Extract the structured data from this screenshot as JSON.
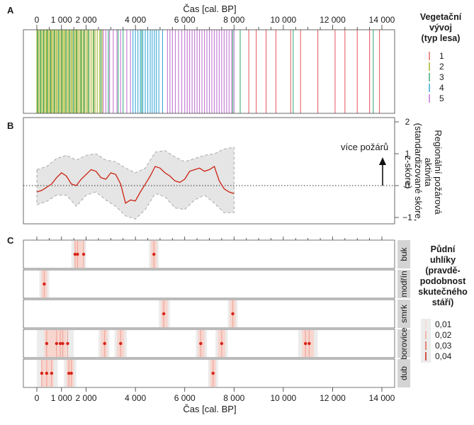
{
  "chart_data": [
    {
      "panel": "A",
      "type": "event-strip",
      "xlabel": "Čas [cal. BP]",
      "xlim": [
        -500,
        14500
      ],
      "xticks": [
        0,
        1000,
        2000,
        4000,
        6000,
        8000,
        10000,
        12000,
        14000
      ],
      "xtick_labels": [
        "0",
        "1 000",
        "2 000",
        "4 000",
        "6 000",
        "8 000",
        "10 000",
        "12 000",
        "14 000"
      ],
      "minor_xticks": [
        500,
        1500,
        2500,
        3000,
        3500,
        4500,
        5000,
        5500,
        6500,
        7000,
        7500,
        8500,
        9000,
        9500,
        10500,
        11000,
        11500,
        12500,
        13000,
        13500
      ],
      "legend": {
        "title_lines": [
          "Vegetační",
          "vývoj",
          "(typ lesa)"
        ],
        "entries": [
          {
            "label": "1",
            "color": "#e8656b"
          },
          {
            "label": "2",
            "color": "#a9b42a"
          },
          {
            "label": "3",
            "color": "#3fae7a"
          },
          {
            "label": "4",
            "color": "#3aa7d8"
          },
          {
            "label": "5",
            "color": "#c277d3"
          }
        ]
      },
      "events": {
        "1": [
          8600,
          8900,
          9300,
          9700,
          10300,
          10700,
          11400,
          12100,
          12500,
          13000,
          13500,
          13900
        ],
        "2": [
          0,
          60,
          120,
          180,
          240,
          290,
          340,
          390,
          440,
          490,
          540,
          590,
          640,
          690,
          740,
          790,
          840,
          890,
          940,
          990,
          1040,
          1090,
          1140,
          1190,
          1240,
          1290,
          1340,
          1390,
          1440,
          1490,
          1540,
          1590,
          1640,
          1700,
          1760,
          1820,
          1880,
          1940,
          2000,
          2060,
          2120,
          2200,
          2280,
          2360,
          2450,
          2550,
          2650
        ],
        "3": [
          30,
          150,
          270,
          420,
          560,
          710,
          880,
          1010,
          1180,
          1330,
          1480,
          1610,
          1790,
          1920,
          2100,
          2310,
          2600,
          2900,
          3300,
          3500,
          4250,
          7950,
          8250,
          10400,
          13650
        ],
        "4": [
          3900,
          4000,
          4100,
          4200,
          4300,
          4400,
          4500,
          4600,
          4680,
          4770,
          4850,
          4950,
          5100
        ],
        "5": [
          2700,
          2800,
          2950,
          3100,
          3250,
          3400,
          3650,
          3800,
          5300,
          5400,
          5500,
          5620,
          5750,
          5880,
          6000,
          6100,
          6200,
          6300,
          6400,
          6500,
          6600,
          6700,
          6800,
          6900,
          7000,
          7100,
          7200,
          7300,
          7400,
          7500,
          7600,
          7700,
          7800,
          7900,
          8000
        ]
      }
    },
    {
      "panel": "B",
      "type": "line",
      "ylabel_lines": [
        "Regionální požárová",
        "aktivita",
        "(standardizované skóre,",
        "z-skóre)"
      ],
      "ylim": [
        -1.25,
        2.1
      ],
      "yticks": [
        -1,
        0,
        1,
        2
      ],
      "ytick_labels": [
        "−1",
        "0",
        "1",
        "2"
      ],
      "annotation": "více požárů",
      "reference_line": 0,
      "series": [
        {
          "name": "mean",
          "color": "#cc2211",
          "x": [
            0,
            200,
            400,
            600,
            800,
            1000,
            1200,
            1400,
            1600,
            1800,
            2000,
            2200,
            2400,
            2600,
            2800,
            3000,
            3200,
            3400,
            3600,
            3800,
            4000,
            4200,
            4400,
            4600,
            4800,
            5000,
            5200,
            5400,
            5600,
            5800,
            6000,
            6200,
            6400,
            6600,
            6800,
            7000,
            7200,
            7400,
            7600,
            7800,
            8000
          ],
          "y": [
            -0.2,
            -0.15,
            -0.05,
            0.05,
            0.25,
            0.4,
            0.3,
            0.05,
            0.0,
            0.2,
            0.35,
            0.5,
            0.45,
            0.25,
            0.2,
            0.4,
            0.35,
            0.05,
            -0.55,
            -0.45,
            -0.48,
            -0.2,
            0.05,
            0.3,
            0.6,
            0.55,
            0.4,
            0.3,
            0.15,
            0.1,
            0.2,
            0.45,
            0.5,
            0.55,
            0.45,
            0.5,
            0.6,
            0.15,
            -0.1,
            -0.2,
            -0.25
          ]
        },
        {
          "name": "ci_upper",
          "color": "#aaaaaa",
          "x": [
            0,
            400,
            800,
            1200,
            1600,
            2000,
            2400,
            2800,
            3200,
            3600,
            4000,
            4400,
            4800,
            5200,
            5600,
            6000,
            6400,
            6800,
            7200,
            7600,
            8000
          ],
          "y": [
            0.5,
            0.6,
            0.85,
            0.95,
            0.8,
            0.95,
            1.0,
            0.8,
            0.75,
            0.55,
            0.4,
            0.55,
            1.05,
            1.1,
            0.9,
            0.75,
            0.85,
            0.95,
            1.0,
            1.15,
            1.2
          ]
        },
        {
          "name": "ci_lower",
          "color": "#aaaaaa",
          "x": [
            0,
            400,
            800,
            1200,
            1600,
            2000,
            2400,
            2800,
            3200,
            3600,
            4000,
            4400,
            4800,
            5200,
            5600,
            6000,
            6400,
            6800,
            7200,
            7600,
            8000
          ],
          "y": [
            -0.6,
            -0.5,
            -0.3,
            -0.3,
            -0.65,
            -0.3,
            -0.2,
            -0.45,
            -0.65,
            -0.95,
            -1.05,
            -0.75,
            -0.25,
            -0.35,
            -0.7,
            -0.75,
            -0.45,
            -0.3,
            -0.55,
            -0.85,
            -0.85
          ]
        }
      ]
    },
    {
      "panel": "C",
      "type": "scatter",
      "xlabel": "Čas [cal. BP]",
      "xticks": [
        0,
        1000,
        2000,
        4000,
        6000,
        8000,
        10000,
        12000,
        14000
      ],
      "xtick_labels": [
        "0",
        "1 000",
        "2 000",
        "4 000",
        "6 000",
        "8 000",
        "10 000",
        "12 000",
        "14 000"
      ],
      "legend": {
        "title_lines": [
          "Půdní",
          "uhlíky",
          "(pravdě-",
          "podobnost",
          "skutečného",
          "stáří)"
        ],
        "entries": [
          "0,01",
          "0,02",
          "0,03",
          "0,04"
        ]
      },
      "rows": [
        {
          "label": "buk",
          "points": [
            1550,
            1650,
            1900,
            4750
          ],
          "density_spans": [
            [
              1400,
              2000
            ],
            [
              4550,
              4950
            ]
          ]
        },
        {
          "label": "modřín",
          "points": [
            300
          ],
          "density_spans": [
            [
              100,
              500
            ]
          ]
        },
        {
          "label": "smrk",
          "points": [
            5150,
            7950
          ],
          "density_spans": [
            [
              4950,
              5400
            ],
            [
              7750,
              8150
            ]
          ]
        },
        {
          "label": "borovice",
          "points": [
            400,
            800,
            950,
            1050,
            1250,
            2750,
            3400,
            6650,
            7500,
            10900,
            11050
          ],
          "density_spans": [
            [
              0,
              1500
            ],
            [
              2500,
              2950
            ],
            [
              3150,
              3650
            ],
            [
              6450,
              6900
            ],
            [
              7250,
              7750
            ],
            [
              10600,
              11400
            ]
          ]
        },
        {
          "label": "dub",
          "points": [
            200,
            400,
            600,
            1300,
            1400,
            7150
          ],
          "density_spans": [
            [
              0,
              850
            ],
            [
              1100,
              1600
            ],
            [
              6950,
              7350
            ]
          ]
        }
      ]
    }
  ]
}
